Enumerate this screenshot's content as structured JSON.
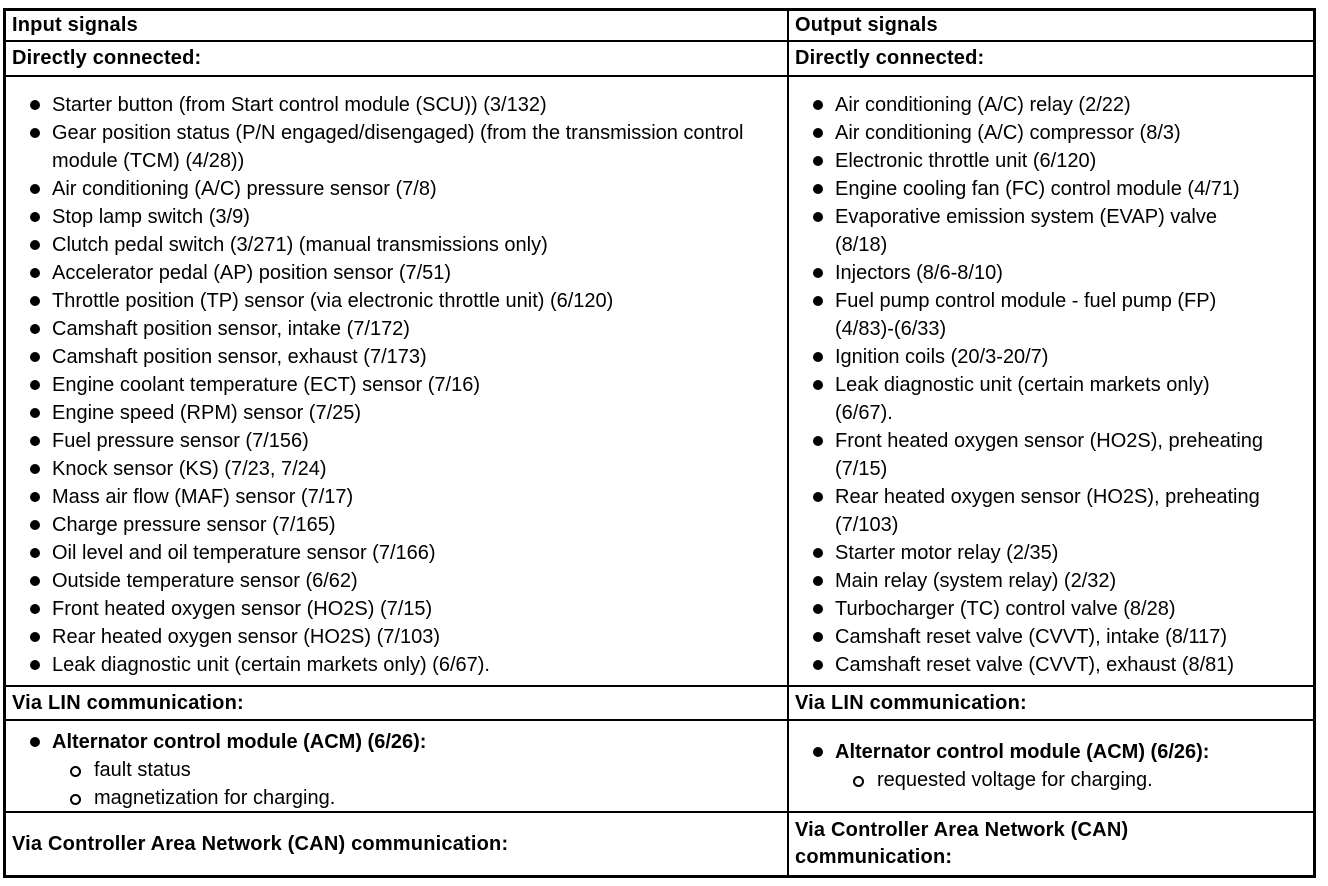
{
  "page": {
    "background_color": "#ffffff",
    "border_color": "#000000",
    "text_color": "#000000"
  },
  "columns": [
    {
      "header": "Input signals",
      "directly_connected": {
        "label": "Directly connected:",
        "items": [
          "Starter button (from Start control module (SCU)) (3/132)",
          "Gear position status (P/N engaged/disengaged) (from the transmission control module (TCM) (4/28))",
          "Air conditioning (A/C) pressure sensor (7/8)",
          "Stop lamp switch (3/9)",
          "Clutch pedal switch (3/271) (manual transmissions only)",
          "Accelerator pedal (AP) position sensor (7/51)",
          "Throttle position (TP) sensor (via electronic throttle unit) (6/120)",
          "Camshaft position sensor, intake (7/172)",
          "Camshaft position sensor, exhaust (7/173)",
          "Engine coolant temperature (ECT) sensor (7/16)",
          "Engine speed (RPM) sensor (7/25)",
          "Fuel pressure sensor (7/156)",
          "Knock sensor (KS) (7/23, 7/24)",
          "Mass air flow (MAF) sensor (7/17)",
          "Charge pressure sensor (7/165)",
          "Oil level and oil temperature sensor (7/166)",
          "Outside temperature sensor (6/62)",
          "Front heated oxygen sensor (HO2S) (7/15)",
          "Rear heated oxygen sensor (HO2S) (7/103)",
          "Leak diagnostic unit (certain markets only) (6/67)."
        ]
      },
      "via_lin": {
        "label": "Via LIN communication:",
        "item": "Alternator control module (ACM) (6/26):",
        "subitems": [
          "fault status",
          "magnetization for charging."
        ]
      },
      "via_can": {
        "label": "Via Controller Area Network (CAN) communication:"
      }
    },
    {
      "header": "Output signals",
      "directly_connected": {
        "label": "Directly connected:",
        "items": [
          "Air conditioning (A/C) relay (2/22)",
          "Air conditioning (A/C) compressor (8/3)",
          "Electronic throttle unit (6/120)",
          "Engine cooling fan (FC) control module (4/71)",
          "Evaporative emission system (EVAP) valve (8/18)",
          "Injectors (8/6-8/10)",
          "Fuel pump control module - fuel pump (FP) (4/83)-(6/33)",
          "Ignition coils (20/3-20/7)",
          "Leak diagnostic unit (certain markets only) (6/67).",
          "Front heated oxygen sensor (HO2S), preheating (7/15)",
          "Rear heated oxygen sensor (HO2S), preheating (7/103)",
          "Starter motor relay (2/35)",
          "Main relay (system relay) (2/32)",
          "Turbocharger (TC) control valve (8/28)",
          "Camshaft reset valve (CVVT), intake (8/117)",
          "Camshaft reset valve (CVVT), exhaust (8/81)"
        ]
      },
      "via_lin": {
        "label": "Via LIN communication:",
        "item": "Alternator control module (ACM) (6/26):",
        "subitems": [
          "requested voltage for charging."
        ]
      },
      "via_can": {
        "label": "Via Controller Area Network (CAN) communication:"
      }
    }
  ]
}
